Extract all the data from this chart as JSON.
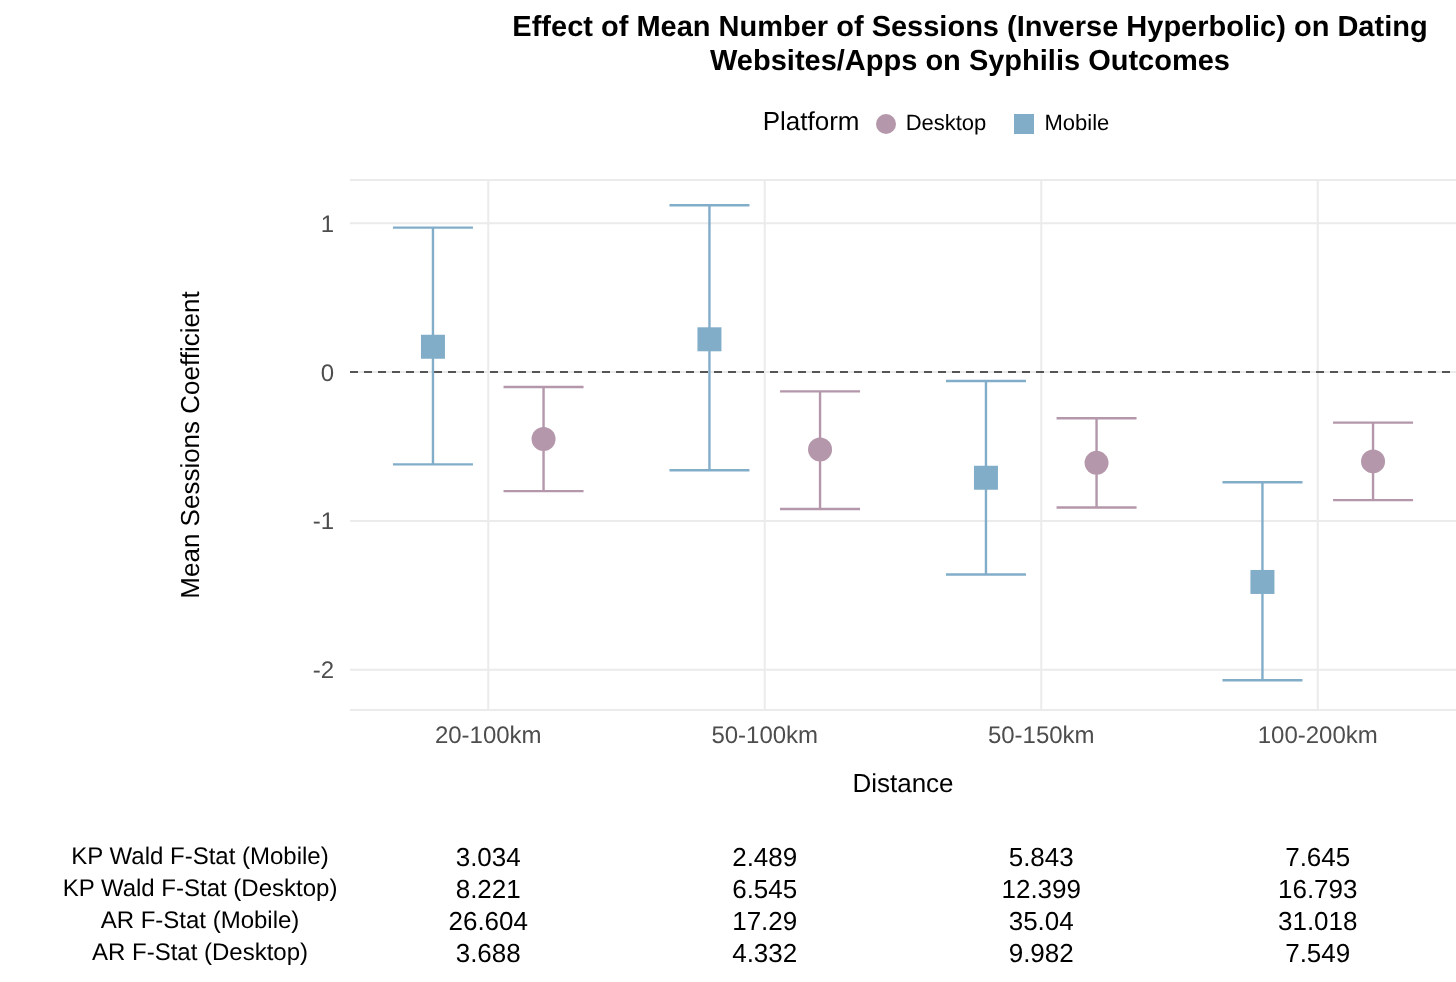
{
  "chart_data": {
    "type": "scatter",
    "title": "Effect of Mean Number of Sessions (Inverse Hyperbolic) on Dating Websites/Apps on Syphilis Outcomes",
    "xlabel": "Distance",
    "ylabel": "Mean Sessions Coefficient",
    "legend_title": "Platform",
    "legend": "top",
    "grid": true,
    "categories": [
      "20-100km",
      "50-100km",
      "50-150km",
      "100-200km"
    ],
    "ylim": [
      -2.27,
      1.29
    ],
    "yticks": [
      -2,
      -1,
      0,
      1
    ],
    "series": [
      {
        "name": "Desktop",
        "color": "#b497aa",
        "marker": "circle",
        "values": [
          -0.45,
          -0.52,
          -0.61,
          -0.6
        ],
        "errors": [
          [
            -0.8,
            -0.1
          ],
          [
            -0.92,
            -0.13
          ],
          [
            -0.91,
            -0.31
          ],
          [
            -0.86,
            -0.34
          ]
        ]
      },
      {
        "name": "Mobile",
        "color": "#82adc9",
        "marker": "square",
        "values": [
          0.17,
          0.22,
          -0.71,
          -1.41
        ],
        "errors": [
          [
            -0.62,
            0.97
          ],
          [
            -0.66,
            1.12
          ],
          [
            -1.36,
            -0.06
          ],
          [
            -2.07,
            -0.74
          ]
        ]
      }
    ],
    "ref_lines": [
      {
        "axis": "y",
        "value": 0,
        "color": "#555555",
        "line_style": "dashed"
      }
    ],
    "annotations": [
      "KP Wald F-Stat (Mobile)",
      "3.034",
      "2.489",
      "5.843",
      "7.645",
      "KP Wald F-Stat (Desktop)",
      "8.221",
      "6.545",
      "12.399",
      "16.793",
      "AR F-Stat (Mobile)",
      "26.604",
      "17.29",
      "35.04",
      "31.018",
      "AR F-Stat (Desktop)",
      "3.688",
      "4.332",
      "9.982",
      "7.549"
    ]
  }
}
